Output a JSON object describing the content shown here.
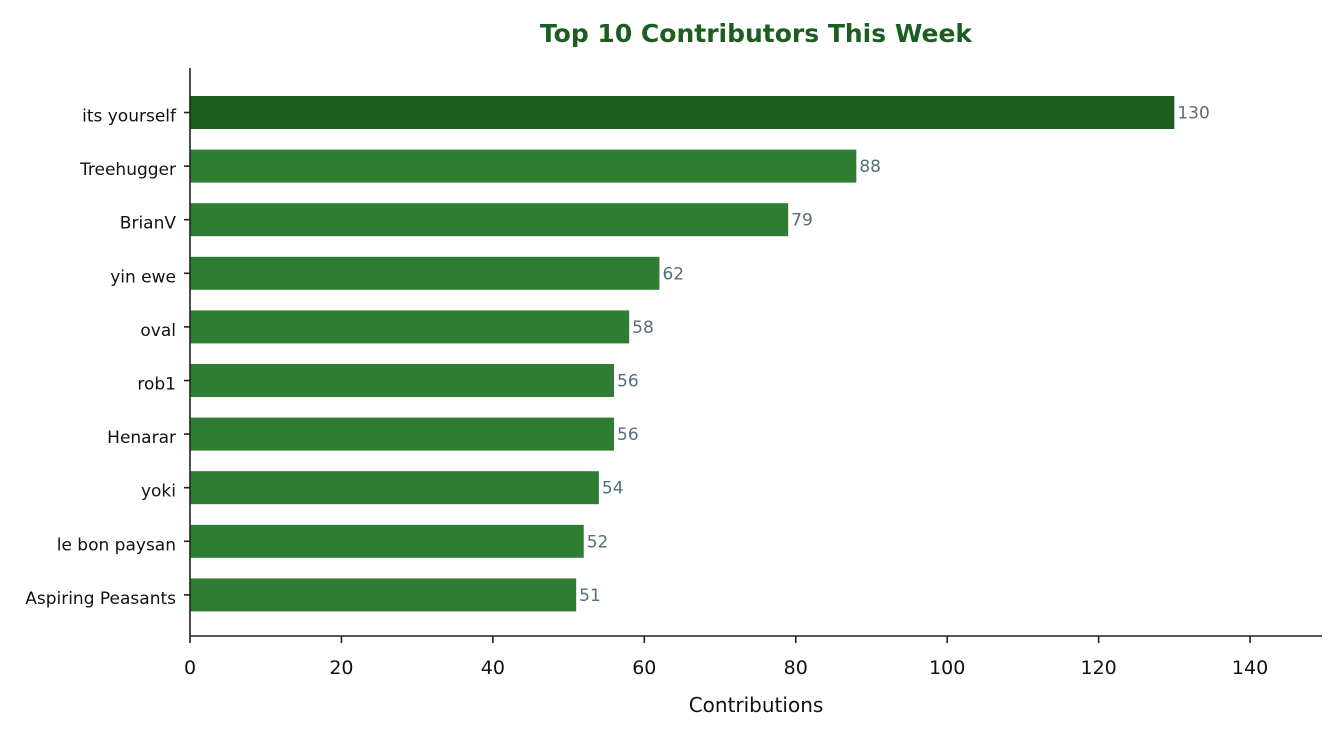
{
  "chart_data": {
    "type": "bar",
    "orientation": "horizontal",
    "title": "Top 10 Contributors This Week",
    "xlabel": "Contributions",
    "ylabel": "",
    "categories": [
      "its yourself",
      "Treehugger",
      "BrianV",
      "yin ewe",
      "oval",
      "rob1",
      "Henarar",
      "yoki",
      "le bon paysan",
      "Aspiring Peasants"
    ],
    "values": [
      130,
      88,
      79,
      62,
      58,
      56,
      56,
      54,
      52,
      51
    ],
    "xlim": [
      0,
      149.5
    ],
    "xticks": [
      0,
      20,
      40,
      60,
      80,
      100,
      120,
      140
    ],
    "grid": false,
    "legend": "none",
    "colors": {
      "title": "#1b5e20",
      "top_bar": "#1b5e20",
      "bar": "#2e7d32",
      "value_label": "#546e7a",
      "axis": "#222222"
    }
  }
}
